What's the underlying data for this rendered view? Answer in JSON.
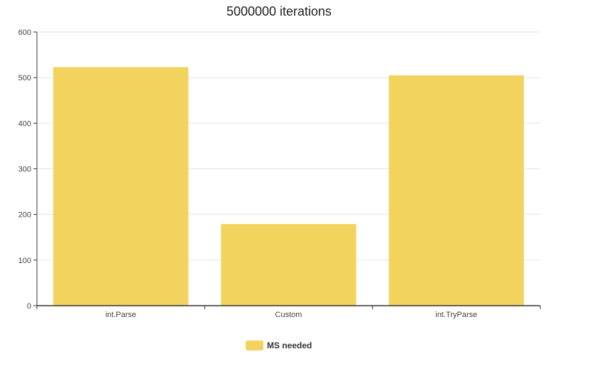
{
  "chart_data": {
    "type": "bar",
    "title": "5000000 iterations",
    "categories": [
      "int.Parse",
      "Custom",
      "int.TryParse"
    ],
    "series": [
      {
        "name": "MS needed",
        "values": [
          523,
          179,
          505
        ]
      }
    ],
    "ylim": [
      0,
      600
    ],
    "yticks": [
      0,
      100,
      200,
      300,
      400,
      500,
      600
    ],
    "grid": true,
    "legend_position": "bottom-center",
    "colors": {
      "bar": "#f2d35e",
      "grid": "#e5e5e5",
      "axis": "#333333"
    }
  }
}
